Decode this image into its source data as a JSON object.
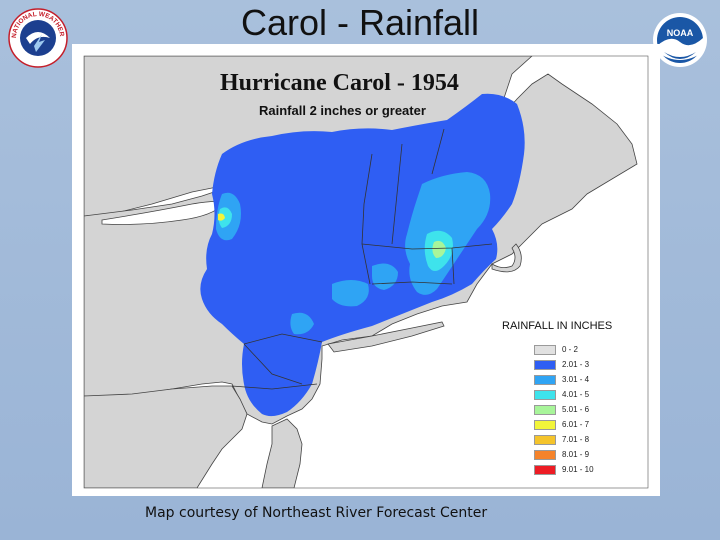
{
  "slide": {
    "title": "Carol - Rainfall",
    "credit": "Map courtesy of Northeast River Forecast Center"
  },
  "logos": {
    "nws": {
      "text": "NATIONAL WEATHER SERVICE",
      "icon": "nws-logo-icon"
    },
    "noaa": {
      "text": "NOAA",
      "icon": "noaa-logo-icon"
    }
  },
  "map": {
    "title": "Hurricane Carol - 1954",
    "subtitle": "Rainfall 2 inches or greater",
    "colors": {
      "land": "#d4d4d4",
      "water": "#ffffff",
      "boundary": "#333333"
    }
  },
  "legend": {
    "title": "RAINFALL IN INCHES",
    "items": [
      {
        "label": "0 - 2",
        "color": "#e1e1e1"
      },
      {
        "label": "2.01 - 3",
        "color": "#2f5ef3"
      },
      {
        "label": "3.01 - 4",
        "color": "#2fa4f4"
      },
      {
        "label": "4.01 - 5",
        "color": "#3ee3ec"
      },
      {
        "label": "5.01 - 6",
        "color": "#a8f59a"
      },
      {
        "label": "6.01 - 7",
        "color": "#f2f53a"
      },
      {
        "label": "7.01 - 8",
        "color": "#f5c42b"
      },
      {
        "label": "8.01 - 9",
        "color": "#f5832b"
      },
      {
        "label": "9.01 - 10",
        "color": "#ed1c24"
      }
    ]
  }
}
